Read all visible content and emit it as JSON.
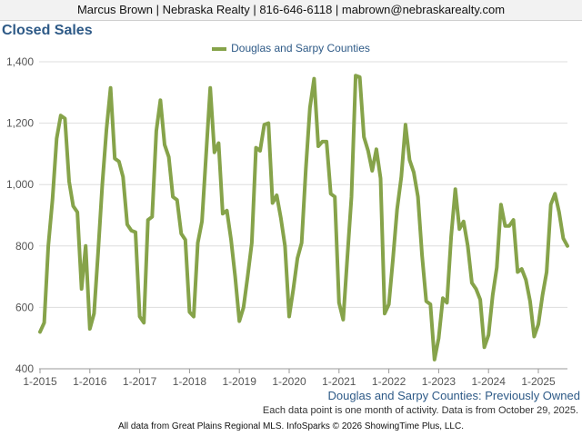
{
  "agent_bar": "Marcus Brown | Nebraska Realty | 816-646-6118 | mabrown@nebraskarealty.com",
  "footer": "All data from Great Plains Regional MLS. InfoSparks © 2026 ShowingTime Plus, LLC.",
  "colors": {
    "line": "#86a34a",
    "title": "#2e5a87",
    "grid": "#dddddd"
  },
  "chart_data": {
    "type": "line",
    "title": "Closed Sales",
    "subtitle": "Douglas and Sarpy Counties: Previously Owned",
    "note": "Each data point is one month of activity. Data is from October 29, 2025.",
    "legend": "top-center",
    "grid": true,
    "ylim": [
      400,
      1400
    ],
    "yticks": [
      400,
      600,
      800,
      1000,
      1200,
      1400
    ],
    "ytick_labels": [
      "400",
      "600",
      "800",
      "1,000",
      "1,200",
      "1,400"
    ],
    "xticks": [
      "1-2015",
      "1-2016",
      "1-2017",
      "1-2018",
      "1-2019",
      "1-2020",
      "1-2021",
      "1-2022",
      "1-2023",
      "1-2024",
      "1-2025"
    ],
    "x_start": "2015-01",
    "series": [
      {
        "name": "Douglas and Sarpy Counties",
        "values": [
          520,
          550,
          800,
          950,
          1150,
          1225,
          1215,
          1010,
          930,
          910,
          660,
          800,
          530,
          580,
          780,
          1000,
          1180,
          1315,
          1085,
          1075,
          1025,
          870,
          850,
          845,
          570,
          550,
          885,
          895,
          1175,
          1275,
          1130,
          1090,
          960,
          950,
          840,
          820,
          585,
          570,
          810,
          880,
          1100,
          1315,
          1105,
          1135,
          905,
          915,
          820,
          700,
          555,
          600,
          700,
          810,
          1120,
          1110,
          1195,
          1200,
          940,
          965,
          890,
          800,
          570,
          660,
          760,
          810,
          1050,
          1250,
          1345,
          1125,
          1140,
          1140,
          970,
          960,
          615,
          560,
          760,
          960,
          1355,
          1350,
          1155,
          1110,
          1045,
          1115,
          1020,
          580,
          610,
          760,
          920,
          1025,
          1195,
          1080,
          1040,
          960,
          770,
          620,
          610,
          430,
          500,
          630,
          615,
          830,
          985,
          855,
          880,
          800,
          680,
          660,
          625,
          470,
          510,
          640,
          730,
          935,
          865,
          865,
          885,
          715,
          725,
          690,
          620,
          505,
          545,
          640,
          715,
          935,
          970,
          910,
          825,
          800
        ]
      }
    ]
  }
}
